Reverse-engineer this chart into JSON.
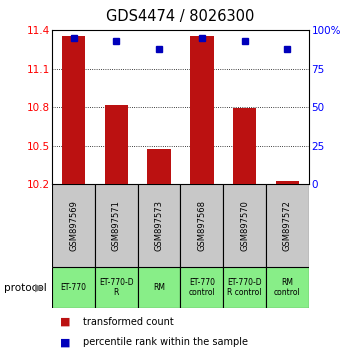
{
  "title": "GDS4474 / 8026300",
  "samples": [
    "GSM897569",
    "GSM897571",
    "GSM897573",
    "GSM897568",
    "GSM897570",
    "GSM897572"
  ],
  "bar_values": [
    11.355,
    10.815,
    10.47,
    11.355,
    10.795,
    10.225
  ],
  "percentile_values": [
    95,
    93,
    88,
    95,
    93,
    88
  ],
  "ylim_left": [
    10.2,
    11.4
  ],
  "ylim_right": [
    0,
    100
  ],
  "yticks_left": [
    10.2,
    10.5,
    10.8,
    11.1,
    11.4
  ],
  "yticks_right": [
    0,
    25,
    50,
    75,
    100
  ],
  "bar_color": "#bb1111",
  "dot_color": "#0000bb",
  "bar_width": 0.55,
  "proto_labels": [
    "ET-770",
    "ET-770-D\nR",
    "RM",
    "ET-770\ncontrol",
    "ET-770-D\nR control",
    "RM\ncontrol"
  ],
  "proto_color": "#88ee88",
  "sample_box_color": "#c8c8c8",
  "legend_red": "transformed count",
  "legend_blue": "percentile rank within the sample"
}
